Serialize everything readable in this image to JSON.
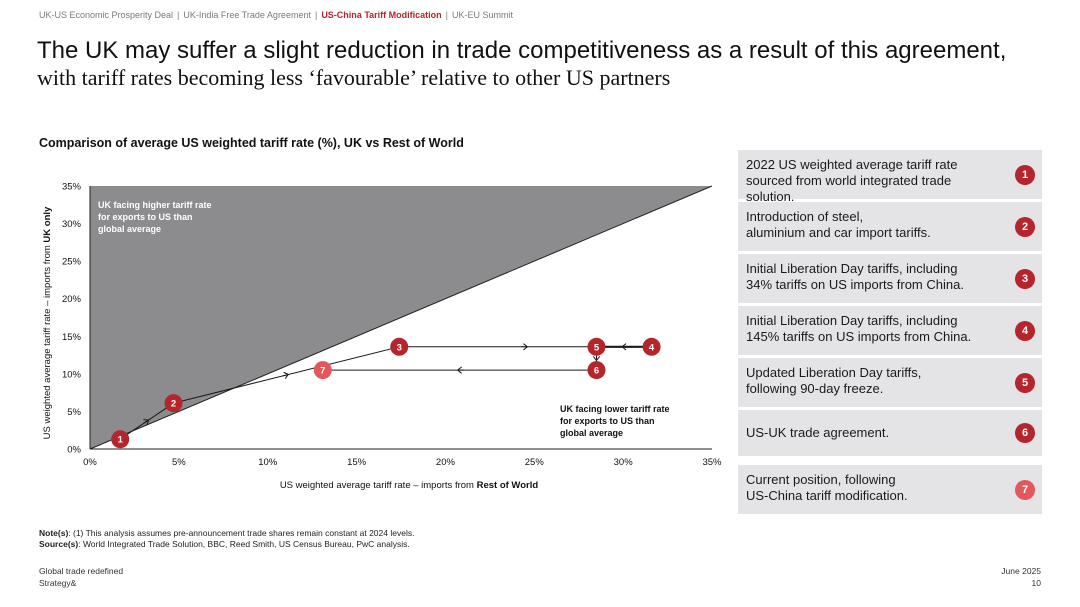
{
  "breadcrumb": {
    "items": [
      {
        "label": "UK-US Economic Prosperity Deal",
        "active": false
      },
      {
        "label": "UK-India Free Trade Agreement",
        "active": false
      },
      {
        "label": "US-China Tariff Modification",
        "active": true
      },
      {
        "label": "UK-EU Summit",
        "active": false
      }
    ],
    "separator": "|"
  },
  "title": {
    "line1": "The UK may suffer a slight reduction in trade competitiveness as a result of this agreement,",
    "line2": "with tariff rates becoming less ‘favourable’ relative to other US partners"
  },
  "colors": {
    "accent": "#b5252c",
    "accent_light": "#e4575d",
    "upper_region": "#8c8b8d",
    "legend_bg": "#e4e3e6"
  },
  "chart_data": {
    "type": "scatter",
    "title": "Comparison of average US weighted tariff rate (%), UK vs Rest of World",
    "xlabel_prefix": "US weighted average tariff rate – imports from ",
    "xlabel_bold": "Rest of World",
    "ylabel_prefix": "US weighted average tariff rate – imports from ",
    "ylabel_bold": "UK only",
    "xlim": [
      0,
      35
    ],
    "ylim": [
      0,
      35
    ],
    "x_ticks": [
      0,
      5,
      10,
      15,
      20,
      25,
      30,
      35
    ],
    "y_ticks": [
      0,
      5,
      10,
      15,
      20,
      25,
      30,
      35
    ],
    "x_tick_labels": [
      "0%",
      "5%",
      "10%",
      "15%",
      "20%",
      "25%",
      "30%",
      "35%"
    ],
    "y_tick_labels": [
      "0%",
      "5%",
      "10%",
      "15%",
      "20%",
      "25%",
      "30%",
      "35%"
    ],
    "diagonal": {
      "from": [
        0,
        0
      ],
      "to": [
        35,
        35
      ]
    },
    "region_labels": {
      "upper": [
        "UK facing higher tariff rate",
        "for exports to US than",
        "global average"
      ],
      "lower": [
        "UK facing lower tariff rate",
        "for exports to US than",
        "global average"
      ]
    },
    "points": [
      {
        "id": 1,
        "label": "1",
        "x": 1.7,
        "y": 1.3,
        "highlight": false
      },
      {
        "id": 2,
        "label": "2",
        "x": 4.7,
        "y": 6.1,
        "highlight": false
      },
      {
        "id": 3,
        "label": "3",
        "x": 17.4,
        "y": 13.6,
        "highlight": false
      },
      {
        "id": 4,
        "label": "4",
        "x": 31.6,
        "y": 13.6,
        "highlight": false
      },
      {
        "id": 5,
        "label": "5",
        "x": 28.5,
        "y": 13.6,
        "highlight": false
      },
      {
        "id": 6,
        "label": "6",
        "x": 28.5,
        "y": 10.5,
        "highlight": false
      },
      {
        "id": 7,
        "label": "7",
        "x": 13.1,
        "y": 10.5,
        "highlight": true
      }
    ],
    "path_order": [
      1,
      2,
      3,
      4,
      5,
      6,
      7
    ]
  },
  "legend": [
    {
      "num": "1",
      "line1": "2022 US weighted average tariff rate",
      "line2": "sourced from world integrated trade solution.",
      "highlight": false
    },
    {
      "num": "2",
      "line1": "Introduction of steel,",
      "line2": "aluminium and car import tariffs.",
      "highlight": false
    },
    {
      "num": "3",
      "line1": "Initial Liberation Day tariffs, including",
      "line2": "34% tariffs on US imports from China.",
      "highlight": false
    },
    {
      "num": "4",
      "line1": "Initial Liberation Day tariffs, including",
      "line2": "145% tariffs on US imports from China.",
      "highlight": false
    },
    {
      "num": "5",
      "line1": "Updated Liberation Day tariffs,",
      "line2": "following 90-day freeze.",
      "highlight": false
    },
    {
      "num": "6",
      "line1": "US-UK trade agreement.",
      "line2": "",
      "highlight": false
    },
    {
      "num": "7",
      "line1": "Current position, following",
      "line2": "US-China tariff modification.",
      "highlight": true
    }
  ],
  "notes": {
    "note_label": "Note(s)",
    "note_text": ": (1) This analysis assumes pre-announcement trade shares remain constant at 2024 levels.",
    "source_label": "Source(s)",
    "source_text": ": World Integrated Trade Solution, BBC, Reed Smith, US Census Bureau, PwC analysis."
  },
  "footer": {
    "left_line1": "Global trade redefined",
    "left_line2": "Strategy&",
    "date": "June 2025",
    "page": "10"
  }
}
